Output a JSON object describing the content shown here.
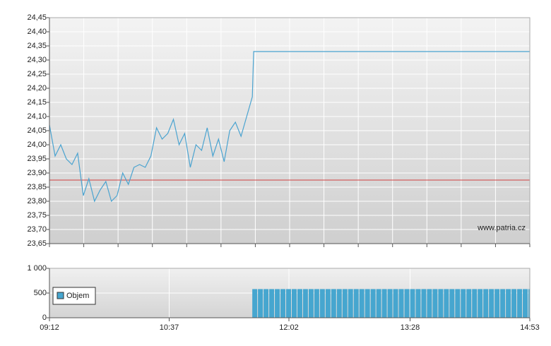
{
  "chart_data": [
    {
      "type": "line",
      "x": [
        "09:12",
        "09:16",
        "09:20",
        "09:24",
        "09:28",
        "09:32",
        "09:36",
        "09:40",
        "09:44",
        "09:48",
        "09:52",
        "09:56",
        "10:00",
        "10:04",
        "10:08",
        "10:12",
        "10:16",
        "10:20",
        "10:24",
        "10:28",
        "10:32",
        "10:36",
        "10:40",
        "10:44",
        "10:48",
        "10:52",
        "10:56",
        "11:00",
        "11:04",
        "11:08",
        "11:12",
        "11:16",
        "11:20",
        "11:24",
        "11:28",
        "11:32",
        "11:36",
        "11:37",
        "14:53"
      ],
      "series": [
        {
          "color": "#4aa3d0",
          "values": [
            24.07,
            23.96,
            24.0,
            23.95,
            23.93,
            23.97,
            23.82,
            23.88,
            23.8,
            23.84,
            23.87,
            23.8,
            23.82,
            23.9,
            23.86,
            23.92,
            23.93,
            23.92,
            23.96,
            24.06,
            24.02,
            24.04,
            24.09,
            24.0,
            24.04,
            23.92,
            24.0,
            23.98,
            24.06,
            23.96,
            24.02,
            23.94,
            24.05,
            24.08,
            24.03,
            24.1,
            24.17,
            24.33,
            24.33
          ]
        }
      ],
      "reference_line": 23.875,
      "reference_color": "#d04040",
      "xlim": [
        "09:12",
        "14:53"
      ],
      "ylim": [
        23.65,
        24.45
      ],
      "yticks": [
        {
          "value": 23.65,
          "label": "23,65"
        },
        {
          "value": 23.7,
          "label": "23,70"
        },
        {
          "value": 23.75,
          "label": "23,75"
        },
        {
          "value": 23.8,
          "label": "23,80"
        },
        {
          "value": 23.85,
          "label": "23,85"
        },
        {
          "value": 23.9,
          "label": "23,90"
        },
        {
          "value": 23.95,
          "label": "23,95"
        },
        {
          "value": 24.0,
          "label": "24,00"
        },
        {
          "value": 24.05,
          "label": "24,05"
        },
        {
          "value": 24.1,
          "label": "24,10"
        },
        {
          "value": 24.15,
          "label": "24,15"
        },
        {
          "value": 24.2,
          "label": "24,20"
        },
        {
          "value": 24.25,
          "label": "24,25"
        },
        {
          "value": 24.3,
          "label": "24,30"
        },
        {
          "value": 24.35,
          "label": "24,35"
        },
        {
          "value": 24.4,
          "label": "24,40"
        },
        {
          "value": 24.45,
          "label": "24,45"
        }
      ],
      "annotation": "www.patria.cz",
      "grid": true
    },
    {
      "type": "bar",
      "x": [
        "11:36",
        "11:40",
        "11:44",
        "11:48",
        "11:52",
        "11:56",
        "12:00",
        "12:04",
        "12:08",
        "12:12",
        "12:16",
        "12:20",
        "12:24",
        "12:28",
        "12:32",
        "12:36",
        "12:40",
        "12:44",
        "12:48",
        "12:52",
        "12:56",
        "13:00",
        "13:04",
        "13:08",
        "13:12",
        "13:16",
        "13:20",
        "13:24",
        "13:28",
        "13:32",
        "13:36",
        "13:40",
        "13:44",
        "13:48",
        "13:52",
        "13:56",
        "14:00",
        "14:04",
        "14:08",
        "14:12",
        "14:16",
        "14:20",
        "14:24",
        "14:28",
        "14:32",
        "14:36",
        "14:40",
        "14:44",
        "14:48",
        "14:52"
      ],
      "series": [
        {
          "name": "Objem",
          "color": "#46a6cf",
          "values": [
            580,
            580,
            580,
            580,
            580,
            580,
            580,
            580,
            580,
            580,
            580,
            580,
            580,
            580,
            580,
            580,
            580,
            580,
            580,
            580,
            580,
            580,
            580,
            580,
            580,
            580,
            580,
            580,
            580,
            580,
            580,
            580,
            580,
            580,
            580,
            580,
            580,
            580,
            580,
            580,
            580,
            580,
            580,
            580,
            580,
            580,
            580,
            580,
            580,
            580
          ]
        }
      ],
      "xlim": [
        "09:12",
        "14:53"
      ],
      "xticks": [
        "09:12",
        "10:37",
        "12:02",
        "13:28",
        "14:53"
      ],
      "ylim": [
        0,
        1000
      ],
      "yticks": [
        0,
        500,
        {
          "value": 1000,
          "label": "1 000"
        }
      ],
      "legend": "upper-left",
      "grid": true
    }
  ]
}
